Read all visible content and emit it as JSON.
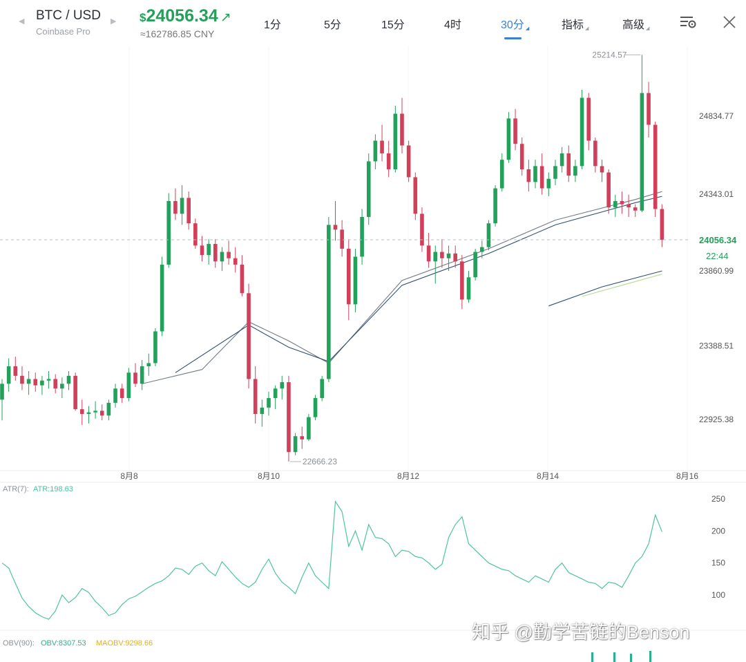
{
  "header": {
    "pair": "BTC / USD",
    "exchange": "Coinbase Pro",
    "price_currency": "$",
    "price": "24056.34",
    "price_cny": "≈162786.85 CNY",
    "tabs": [
      {
        "label": "1分",
        "active": false
      },
      {
        "label": "5分",
        "active": false
      },
      {
        "label": "15分",
        "active": false
      },
      {
        "label": "4时",
        "active": false
      },
      {
        "label": "30分",
        "active": true
      },
      {
        "label": "指标",
        "active": false
      },
      {
        "label": "高级",
        "active": false
      }
    ],
    "icons": [
      "chevron-left-icon",
      "chevron-right-icon",
      "arrow-up-right-icon",
      "chart-settings-icon",
      "close-icon"
    ]
  },
  "colors": {
    "up": "#23a05a",
    "down": "#d0405a",
    "accent": "#3a7fd0",
    "atr_line": "#4cc4a0",
    "obv": "#2ab08c",
    "maobv": "#e0b020",
    "ma_dark": "#2f4f70",
    "ma_gray": "#707a88",
    "ma_yellow": "#b8d890"
  },
  "main_chart": {
    "high_label": "25214.57",
    "low_label": "22666.23",
    "current_price_tag": "24056.34",
    "countdown": "22:44",
    "y_axis_labels": [
      "24834.77",
      "24343.01",
      "23860.99",
      "23388.51",
      "22925.38"
    ],
    "y_axis_values": [
      24834.77,
      24343.01,
      23860.99,
      23388.51,
      22925.38
    ],
    "x_axis_labels": [
      "8月8",
      "8月10",
      "8月12",
      "8月14",
      "8月16"
    ],
    "ohlc": [
      [
        23050,
        23180,
        22920,
        23150
      ],
      [
        23150,
        23310,
        23100,
        23260
      ],
      [
        23260,
        23320,
        23170,
        23200
      ],
      [
        23200,
        23260,
        23110,
        23150
      ],
      [
        23150,
        23230,
        23080,
        23180
      ],
      [
        23180,
        23220,
        23100,
        23140
      ],
      [
        23140,
        23200,
        23080,
        23170
      ],
      [
        23170,
        23230,
        23120,
        23180
      ],
      [
        23180,
        23210,
        23090,
        23120
      ],
      [
        23120,
        23190,
        23060,
        23150
      ],
      [
        23150,
        23230,
        23110,
        23200
      ],
      [
        23200,
        23220,
        22980,
        22990
      ],
      [
        22990,
        23050,
        22890,
        22960
      ],
      [
        22960,
        23010,
        22900,
        22970
      ],
      [
        22970,
        23040,
        22930,
        22980
      ],
      [
        22980,
        23020,
        22920,
        22950
      ],
      [
        22950,
        23050,
        22920,
        23030
      ],
      [
        23030,
        23150,
        23000,
        23120
      ],
      [
        23120,
        23150,
        23030,
        23060
      ],
      [
        23060,
        23250,
        23040,
        23220
      ],
      [
        23220,
        23280,
        23130,
        23150
      ],
      [
        23150,
        23300,
        23110,
        23260
      ],
      [
        23260,
        23340,
        23200,
        23280
      ],
      [
        23280,
        23500,
        23260,
        23480
      ],
      [
        23480,
        23950,
        23450,
        23900
      ],
      [
        23900,
        24350,
        23880,
        24300
      ],
      [
        24300,
        24380,
        24180,
        24220
      ],
      [
        24220,
        24400,
        24150,
        24320
      ],
      [
        24320,
        24360,
        24120,
        24160
      ],
      [
        24160,
        24190,
        24000,
        24020
      ],
      [
        24020,
        24080,
        23920,
        23960
      ],
      [
        23960,
        24060,
        23900,
        24030
      ],
      [
        24030,
        24060,
        23880,
        23920
      ],
      [
        23920,
        24010,
        23860,
        23980
      ],
      [
        23980,
        24050,
        23900,
        23940
      ],
      [
        23940,
        24010,
        23850,
        23900
      ],
      [
        23900,
        23960,
        23700,
        23720
      ],
      [
        23720,
        23780,
        23120,
        23180
      ],
      [
        23180,
        23260,
        22900,
        22960
      ],
      [
        22960,
        23050,
        22880,
        23000
      ],
      [
        23000,
        23100,
        22950,
        23060
      ],
      [
        23060,
        23140,
        22990,
        23120
      ],
      [
        23120,
        23200,
        23050,
        23160
      ],
      [
        23160,
        23200,
        22660,
        22720
      ],
      [
        22720,
        22840,
        22700,
        22820
      ],
      [
        22820,
        22880,
        22740,
        22800
      ],
      [
        22800,
        22960,
        22790,
        22940
      ],
      [
        22940,
        23080,
        22920,
        23060
      ],
      [
        23060,
        23200,
        23040,
        23180
      ],
      [
        23180,
        24200,
        23160,
        24150
      ],
      [
        24150,
        24300,
        24050,
        24120
      ],
      [
        24120,
        24180,
        23950,
        24000
      ],
      [
        24000,
        24060,
        23550,
        23650
      ],
      [
        23650,
        24000,
        23600,
        23950
      ],
      [
        23950,
        24250,
        23900,
        24200
      ],
      [
        24200,
        24600,
        24150,
        24550
      ],
      [
        24550,
        24720,
        24500,
        24680
      ],
      [
        24680,
        24780,
        24550,
        24600
      ],
      [
        24600,
        24680,
        24450,
        24500
      ],
      [
        24500,
        24900,
        24480,
        24850
      ],
      [
        24850,
        24950,
        24600,
        24650
      ],
      [
        24650,
        24680,
        24420,
        24450
      ],
      [
        24450,
        24480,
        24180,
        24220
      ],
      [
        24220,
        24260,
        23980,
        24020
      ],
      [
        24020,
        24100,
        23880,
        23920
      ],
      [
        23920,
        24020,
        23780,
        23980
      ],
      [
        23980,
        24060,
        23880,
        23940
      ],
      [
        23940,
        24020,
        23860,
        23970
      ],
      [
        23970,
        24020,
        23880,
        23920
      ],
      [
        23920,
        23960,
        23620,
        23680
      ],
      [
        23680,
        23860,
        23660,
        23820
      ],
      [
        23820,
        24000,
        23800,
        23980
      ],
      [
        23980,
        24050,
        23940,
        24010
      ],
      [
        24010,
        24180,
        23990,
        24160
      ],
      [
        24160,
        24400,
        24140,
        24380
      ],
      [
        24380,
        24600,
        24360,
        24560
      ],
      [
        24560,
        24860,
        24540,
        24820
      ],
      [
        24820,
        24880,
        24620,
        24660
      ],
      [
        24660,
        24700,
        24460,
        24500
      ],
      [
        24500,
        24560,
        24360,
        24420
      ],
      [
        24420,
        24560,
        24380,
        24520
      ],
      [
        24520,
        24600,
        24340,
        24380
      ],
      [
        24380,
        24480,
        24330,
        24440
      ],
      [
        24440,
        24560,
        24400,
        24520
      ],
      [
        24520,
        24640,
        24480,
        24600
      ],
      [
        24600,
        24650,
        24420,
        24460
      ],
      [
        24460,
        24560,
        24420,
        24520
      ],
      [
        24520,
        25000,
        24500,
        24950
      ],
      [
        24950,
        24980,
        24620,
        24680
      ],
      [
        24680,
        24700,
        24480,
        24520
      ],
      [
        24520,
        24560,
        24420,
        24480
      ],
      [
        24480,
        24500,
        24220,
        24260
      ],
      [
        24260,
        24340,
        24200,
        24300
      ],
      [
        24300,
        24360,
        24220,
        24280
      ],
      [
        24280,
        24340,
        24200,
        24260
      ],
      [
        24260,
        24280,
        24200,
        24240
      ],
      [
        24240,
        25220,
        24230,
        24980
      ],
      [
        24980,
        25050,
        24700,
        24780
      ],
      [
        24780,
        24800,
        24200,
        24250
      ],
      [
        24250,
        24280,
        24010,
        24056.34
      ]
    ],
    "moving_averages": [
      {
        "color": "#707a88",
        "points": [
          [
            21,
            23150
          ],
          [
            30,
            23240
          ],
          [
            37,
            23540
          ],
          [
            43,
            23420
          ],
          [
            49,
            23280
          ],
          [
            60,
            23800
          ],
          [
            73,
            24000
          ],
          [
            83,
            24180
          ],
          [
            95,
            24310
          ],
          [
            99,
            24360
          ]
        ]
      },
      {
        "color": "#2f4f70",
        "points": [
          [
            26,
            23220
          ],
          [
            37,
            23520
          ],
          [
            43,
            23380
          ],
          [
            49,
            23290
          ],
          [
            60,
            23770
          ],
          [
            73,
            23970
          ],
          [
            83,
            24150
          ],
          [
            95,
            24290
          ],
          [
            99,
            24330
          ]
        ]
      },
      {
        "color": "#2f4f70",
        "points": [
          [
            82,
            23640
          ],
          [
            90,
            23760
          ],
          [
            99,
            23860
          ]
        ]
      },
      {
        "color": "#b8d890",
        "points": [
          [
            87,
            23700
          ],
          [
            93,
            23770
          ],
          [
            99,
            23840
          ]
        ]
      }
    ]
  },
  "atr_panel": {
    "label": "ATR(7):",
    "value": "ATR:198.63",
    "y_axis_labels": [
      "250",
      "200",
      "150",
      "100"
    ],
    "y_axis_values": [
      250,
      200,
      150,
      100
    ],
    "values": [
      150,
      142,
      118,
      95,
      82,
      72,
      66,
      62,
      75,
      100,
      88,
      96,
      110,
      104,
      90,
      80,
      68,
      72,
      85,
      94,
      98,
      105,
      112,
      118,
      122,
      130,
      142,
      140,
      132,
      145,
      150,
      138,
      130,
      152,
      140,
      128,
      118,
      112,
      120,
      140,
      156,
      134,
      120,
      112,
      102,
      128,
      150,
      130,
      120,
      110,
      246,
      230,
      176,
      200,
      170,
      210,
      190,
      188,
      180,
      160,
      170,
      168,
      160,
      158,
      150,
      140,
      148,
      190,
      210,
      222,
      180,
      170,
      160,
      150,
      145,
      140,
      138,
      130,
      125,
      120,
      130,
      125,
      120,
      140,
      150,
      135,
      130,
      125,
      120,
      118,
      110,
      120,
      118,
      112,
      130,
      150,
      160,
      180,
      225,
      198.63
    ]
  },
  "obv_panel": {
    "label": "OBV(90):",
    "obv_value": "OBV:8307.53",
    "maobv_value": "MAOBV:9298.66"
  },
  "watermark": {
    "text": "知乎 @勤学苦链的Benson"
  }
}
